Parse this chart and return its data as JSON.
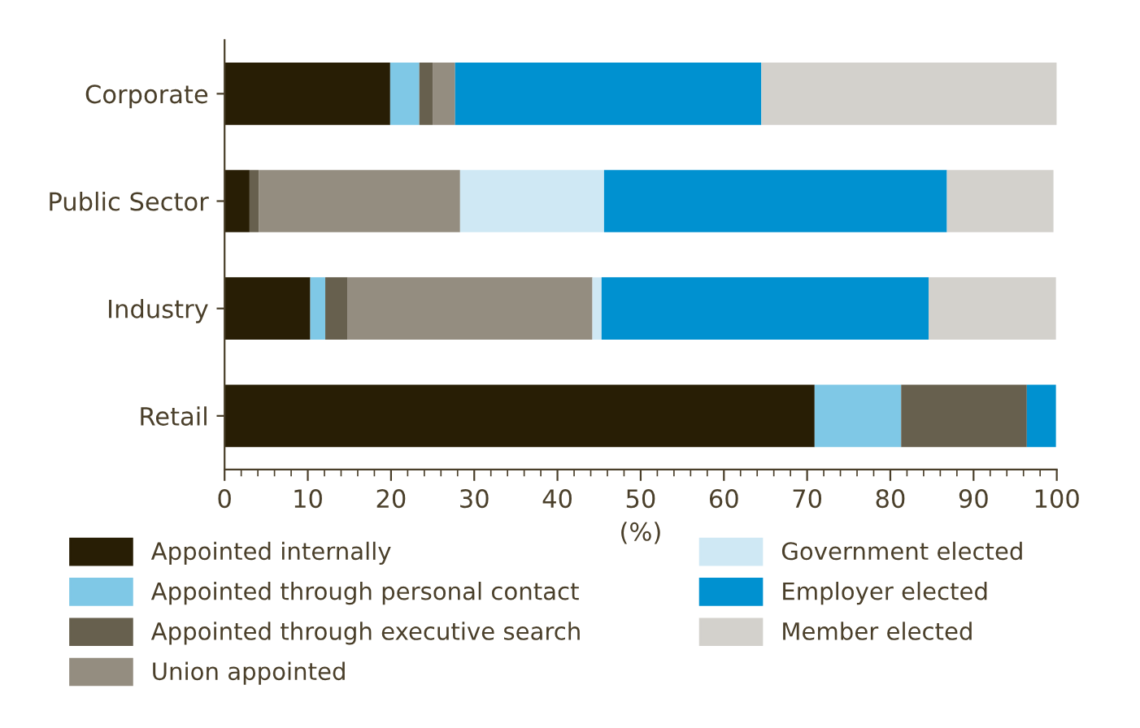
{
  "chart_data": {
    "type": "bar",
    "orientation": "horizontal",
    "stacked": true,
    "xlabel": "(%)",
    "categories": [
      "Corporate",
      "Public Sector",
      "Industry",
      "Retail"
    ],
    "series": [
      {
        "name": "Appointed internally",
        "color": "#281e05",
        "values": [
          19.9,
          3.0,
          10.3,
          70.9
        ]
      },
      {
        "name": "Appointed through personal contact",
        "color": "#7fc8e6",
        "values": [
          3.5,
          0,
          1.8,
          10.4
        ]
      },
      {
        "name": "Appointed through executive search",
        "color": "#67604e",
        "values": [
          1.6,
          1.1,
          2.7,
          15.1
        ]
      },
      {
        "name": "Union appointed",
        "color": "#948d80",
        "values": [
          2.7,
          24.2,
          29.4,
          0
        ]
      },
      {
        "name": "Government elected",
        "color": "#cfe8f4",
        "values": [
          0,
          17.3,
          1.1,
          0
        ]
      },
      {
        "name": "Employer elected",
        "color": "#0091d0",
        "values": [
          36.8,
          41.2,
          39.3,
          3.5
        ]
      },
      {
        "name": "Member elected",
        "color": "#d3d1cc",
        "values": [
          35.5,
          12.8,
          15.3,
          0
        ]
      }
    ],
    "xlim": [
      0,
      100
    ],
    "xticks": [
      0,
      10,
      20,
      30,
      40,
      50,
      60,
      70,
      80,
      90,
      100
    ],
    "grid": false,
    "legend": "bottom"
  }
}
